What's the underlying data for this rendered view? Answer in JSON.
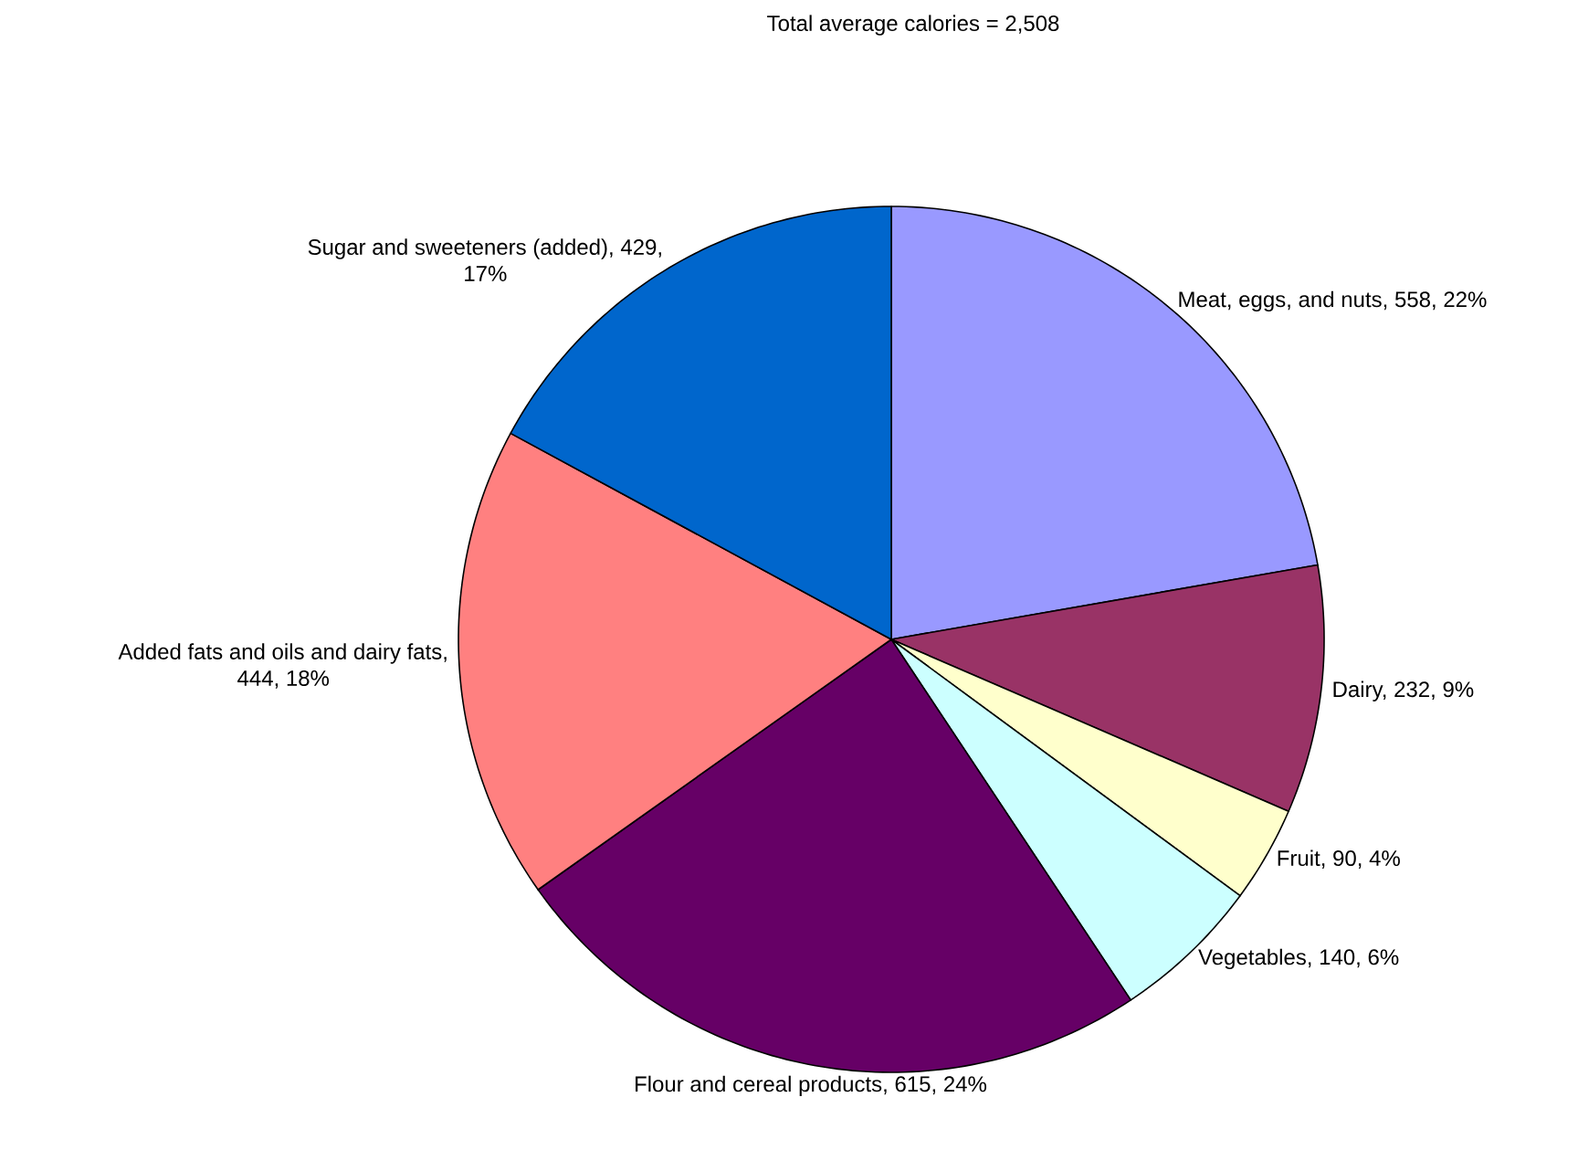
{
  "chart_data": {
    "type": "pie",
    "title": "Total average calories = 2,508",
    "categories": [
      "Meat, eggs, and nuts, 558, 22%",
      "Dairy, 232, 9%",
      "Fruit, 90, 4%",
      "Vegetables, 140, 6%",
      "Flour and cereal products, 615, 24%",
      "Added fats and oils and dairy fats, 444, 18%",
      "Sugar and sweeteners (added), 429, 17%"
    ],
    "values": [
      558,
      232,
      90,
      140,
      615,
      444,
      429
    ],
    "colors": [
      "#9999ff",
      "#993366",
      "#ffffcc",
      "#ccffff",
      "#660066",
      "#ff8080",
      "#0066cc"
    ]
  }
}
